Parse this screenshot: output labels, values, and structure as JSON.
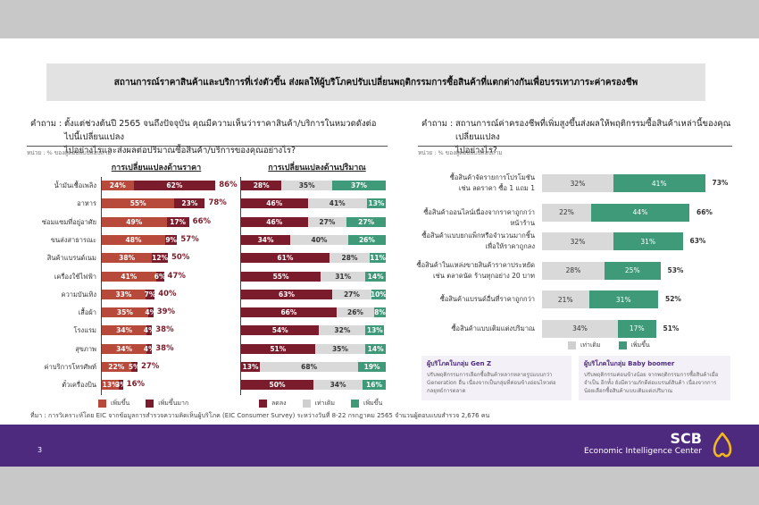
{
  "title": "สถานการณ์ราคาสินค้าและบริการที่เร่งตัวขึ้น  ส่งผลให้ผู้บริโภคปรับเปลี่ยนพฤติกรรมการซื้อสินค้าที่แตกต่างกันเพื่อบรรเทาภาระค่าครองชีพ",
  "left": {
    "q_label": "คำถาม :",
    "q_line1": "ตั้งแต่ช่วงต้นปี 2565 จนถึงปัจจุบัน คุณมีความเห็นว่าราคาสินค้า/บริการในหมวดดังต่อไปนี้เปลี่ยนแปลง",
    "q_line2": "ไปอย่างไรและส่งผลต่อปริมาณซื้อสินค้า/บริการของคุณอย่างไร?",
    "unit": "หน่วย : % ของผู้ตอบแบบสอบถาม"
  },
  "right": {
    "q_label": "คำถาม :",
    "q_line1": "สถานการณ์ค่าครองชีพที่เพิ่มสูงขึ้นส่งผลให้พฤติกรรมซื้อสินค้าเหล่านี้ของคุณเปลี่ยนแปลง",
    "q_line2": "ไปอย่างไร?",
    "unit": "หน่วย : % ของผู้ตอบแบบสอบถาม",
    "boxes": [
      {
        "title": "ผู้บริโภคในกลุ่ม Gen Z",
        "body": "ปรับพฤติกรรมการเลือกซื้อสินค้าหลากหลายรูปแบบกว่า Generation อื่น เนื่องจากเป็นกลุ่มที่ค่อนข้างอ่อนไหวต่อกลยุทธ์การตลาด"
      },
      {
        "title": "ผู้บริโภคในกลุ่ม Baby boomer",
        "body": "ปรับพฤติกรรมค่อนข้างน้อย จากพฤติกรรมการซื้อสินค้าเมื่อจำเป็น อีกทั้ง ยังมีความภักดีต่อแบรนด์สินค้า เนื่องจากการน้อยเลือกซื้อสินค้าแบบเติมแต่งปริมาณ"
      }
    ]
  },
  "source": "ที่มา : การวิเคราะห์โดย EIC จากข้อมูลการสำรวจความคิดเห็นผู้บริโภค (EIC Consumer Survey) ระหว่างวันที่ 8-22 กรกฎาคม 2565 จำนวนผู้ตอบแบบสำรวจ 2,676 คน",
  "footer": {
    "page": "3",
    "brand": "SCB",
    "brand_sub": "Economic Intelligence Center"
  },
  "colors": {
    "inc": "#b84a3c",
    "inc_much": "#7a1c2b",
    "dec": "#7a1c2b",
    "same": "#d9d9d9",
    "up": "#3f9a7a",
    "purple": "#4e2a7e",
    "gold": "#f2b81c"
  },
  "chart_data": [
    {
      "type": "bar",
      "stacked": true,
      "orientation": "horizontal",
      "title": "การเปลี่ยนแปลงด้านราคา",
      "categories": [
        "น้ำมันเชื้อเพลิง",
        "อาหาร",
        "ซ่อมแซมที่อยู่อาศัย",
        "ขนส่งสาธารณะ",
        "สินค้าแบรนด์เนม",
        "เครื่องใช้ไฟฟ้า",
        "ความบันเทิง",
        "เสื้อผ้า",
        "โรงแรม",
        "สุขภาพ",
        "ค่าบริการโทรศัพท์",
        "ตั๋วเครื่องบิน"
      ],
      "series": [
        {
          "name": "เพิ่มขึ้น",
          "values": [
            24,
            55,
            49,
            48,
            38,
            41,
            33,
            35,
            34,
            34,
            22,
            13
          ]
        },
        {
          "name": "เพิ่มขึ้นมาก",
          "values": [
            62,
            23,
            17,
            9,
            12,
            6,
            7,
            4,
            4,
            4,
            5,
            3
          ]
        }
      ],
      "totals": [
        86,
        78,
        66,
        57,
        50,
        47,
        40,
        39,
        38,
        38,
        27,
        16
      ],
      "xlim": [
        0,
        100
      ],
      "legend": "bottom"
    },
    {
      "type": "bar",
      "stacked": true,
      "orientation": "horizontal",
      "title": "การเปลี่ยนแปลงด้านปริมาณ",
      "categories": [
        "น้ำมันเชื้อเพลิง",
        "อาหาร",
        "ซ่อมแซมที่อยู่อาศัย",
        "ขนส่งสาธารณะ",
        "สินค้าแบรนด์เนม",
        "เครื่องใช้ไฟฟ้า",
        "ความบันเทิง",
        "เสื้อผ้า",
        "โรงแรม",
        "สุขภาพ",
        "ค่าบริการโทรศัพท์",
        "ตั๋วเครื่องบิน"
      ],
      "series": [
        {
          "name": "ลดลง",
          "values": [
            28,
            46,
            46,
            34,
            61,
            55,
            63,
            66,
            54,
            51,
            13,
            50
          ]
        },
        {
          "name": "เท่าเดิม",
          "values": [
            35,
            41,
            27,
            40,
            28,
            31,
            27,
            26,
            32,
            35,
            68,
            34
          ]
        },
        {
          "name": "เพิ่มขึ้น",
          "values": [
            37,
            13,
            27,
            26,
            11,
            14,
            10,
            8,
            13,
            14,
            19,
            16
          ]
        }
      ],
      "xlim": [
        0,
        100
      ],
      "legend": "bottom"
    },
    {
      "type": "bar",
      "stacked": true,
      "orientation": "horizontal",
      "title": "",
      "categories": [
        [
          "ซื้อสินค้าจัดรายการโปรโมชัน",
          "เช่น ลดราคา ซื้อ 1 แถม 1"
        ],
        [
          "ซื้อสินค้าออนไลน์เนื่องจากราคาถูกกว่าหน้าร้าน"
        ],
        [
          "ซื้อสินค้าแบบยกแพ็กหรือจำนวนมากชิ้น",
          "เพื่อให้ราคาถูกลง"
        ],
        [
          "ซื้อสินค้าในแหล่งขายสินค้าราคาประหยัด",
          "เช่น ตลาดนัด ร้านทุกอย่าง 20 บาท"
        ],
        [
          "ซื้อสินค้าแบรนด์อื่นที่ราคาถูกกว่า"
        ],
        [
          "ซื้อสินค้าแบบเติมแต่งปริมาณ"
        ]
      ],
      "series": [
        {
          "name": "เท่าเดิม",
          "values": [
            32,
            22,
            32,
            28,
            21,
            34
          ]
        },
        {
          "name": "เพิ่มขึ้น",
          "values": [
            41,
            44,
            31,
            25,
            31,
            17
          ]
        }
      ],
      "totals": [
        73,
        66,
        63,
        53,
        52,
        51
      ],
      "xlim": [
        0,
        100
      ],
      "legend": "bottom"
    }
  ]
}
